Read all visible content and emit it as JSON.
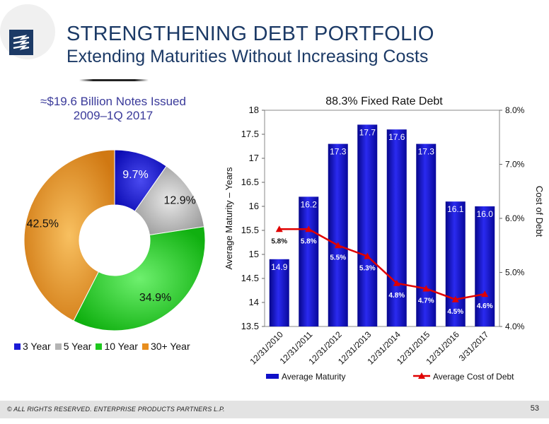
{
  "header": {
    "title": "STRENGTHENING DEBT PORTFOLIO",
    "subtitle": "Extending Maturities Without Increasing Costs"
  },
  "footer": {
    "copyright": "© ALL RIGHTS RESERVED. ENTERPRISE PRODUCTS PARTNERS L.P.",
    "page": "53"
  },
  "colors": {
    "brand": "#1c3a66",
    "bar": "#1010c8",
    "line": "#e00000",
    "pie_3y": "#1a1ad6",
    "pie_5y": "#b4b4b4",
    "pie_10y": "#1ec81e",
    "pie_30y": "#e88e1e"
  },
  "chart_data": [
    {
      "type": "pie",
      "title_line1": "≈$19.6 Billion Notes Issued",
      "title_line2": "2009–1Q 2017",
      "categories": [
        "3 Year",
        "5 Year",
        "10 Year",
        "30+ Year"
      ],
      "values": [
        9.7,
        12.9,
        34.9,
        42.5
      ],
      "labels": [
        "9.7%",
        "12.9%",
        "34.9%",
        "42.5%"
      ],
      "donut": true,
      "legend": "bottom"
    },
    {
      "type": "bar",
      "title": "88.3% Fixed Rate Debt",
      "categories": [
        "12/31/2010",
        "12/31/2011",
        "12/31/2012",
        "12/31/2013",
        "12/31/2014",
        "12/31/2015",
        "12/31/2016",
        "3/31/2017"
      ],
      "ylabel": "Average Maturity – Years",
      "y2label": "Cost of Debt",
      "ylim": [
        13.5,
        18
      ],
      "yticks": [
        "13.5",
        "14",
        "14.5",
        "15",
        "15.5",
        "16",
        "16.5",
        "17",
        "17.5",
        "18"
      ],
      "y2lim": [
        4.0,
        8.0
      ],
      "y2ticks": [
        "4.0%",
        "5.0%",
        "6.0%",
        "7.0%",
        "8.0%"
      ],
      "series": [
        {
          "name": "Average Maturity",
          "type": "bar",
          "values": [
            14.9,
            16.2,
            17.3,
            17.7,
            17.6,
            17.3,
            16.1,
            16.0
          ],
          "labels": [
            "14.9",
            "16.2",
            "17.3",
            "17.7",
            "17.6",
            "17.3",
            "16.1",
            "16.0"
          ]
        },
        {
          "name": "Average Cost of Debt",
          "type": "line",
          "axis": "right",
          "values": [
            5.8,
            5.8,
            5.5,
            5.3,
            4.8,
            4.7,
            4.5,
            4.6
          ],
          "labels": [
            "5.8%",
            "5.8%",
            "5.5%",
            "5.3%",
            "4.8%",
            "4.7%",
            "4.5%",
            "4.6%"
          ]
        }
      ],
      "legend": "bottom"
    }
  ]
}
